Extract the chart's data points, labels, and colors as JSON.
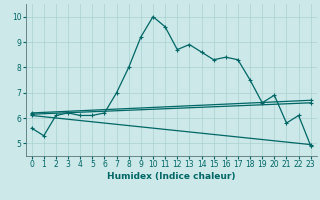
{
  "xlabel": "Humidex (Indice chaleur)",
  "xlim": [
    -0.5,
    23.5
  ],
  "ylim": [
    4.5,
    10.5
  ],
  "xticks": [
    0,
    1,
    2,
    3,
    4,
    5,
    6,
    7,
    8,
    9,
    10,
    11,
    12,
    13,
    14,
    15,
    16,
    17,
    18,
    19,
    20,
    21,
    22,
    23
  ],
  "yticks": [
    5,
    6,
    7,
    8,
    9,
    10
  ],
  "bg_color": "#cce8e8",
  "line_color": "#006666",
  "grid_color": "#aad0d0",
  "series1_x": [
    0,
    1,
    2,
    3,
    4,
    5,
    6,
    7,
    8,
    9,
    10,
    11,
    12,
    13,
    14,
    15,
    16,
    17,
    18,
    19,
    20,
    21,
    22,
    23
  ],
  "series1_y": [
    5.6,
    5.3,
    6.1,
    6.2,
    6.1,
    6.1,
    6.2,
    7.0,
    8.0,
    9.2,
    10.0,
    9.6,
    8.7,
    8.9,
    8.6,
    8.3,
    8.4,
    8.3,
    7.5,
    6.6,
    6.9,
    5.8,
    6.1,
    4.9
  ],
  "series2_x": [
    0,
    23
  ],
  "series2_y": [
    6.15,
    6.6
  ],
  "series3_x": [
    0,
    23
  ],
  "series3_y": [
    6.2,
    6.7
  ],
  "series4_x": [
    0,
    23
  ],
  "series4_y": [
    6.1,
    4.95
  ]
}
